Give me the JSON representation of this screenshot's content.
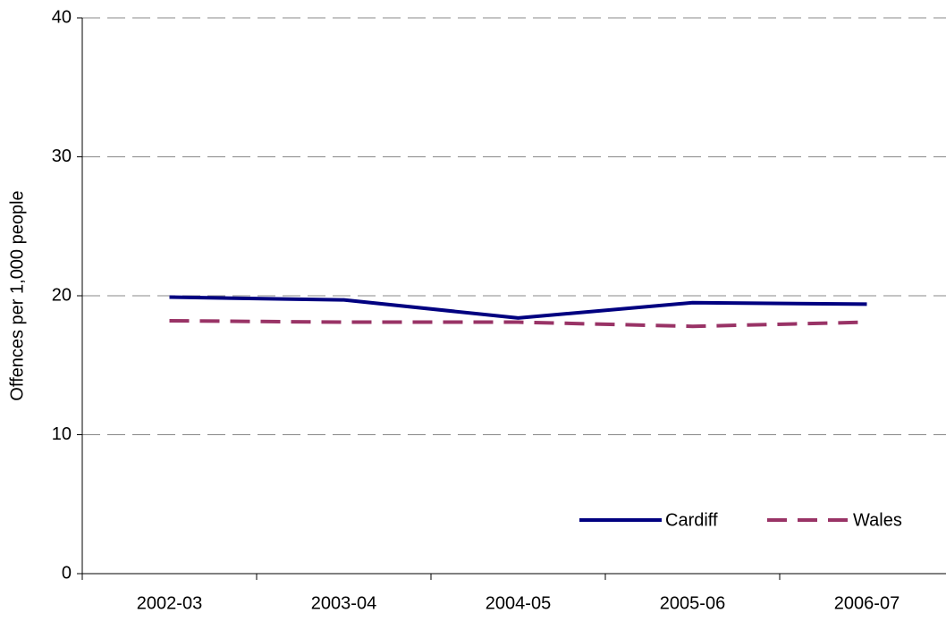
{
  "chart_data": {
    "type": "line",
    "y_label": "Offences per 1,000 people",
    "categories": [
      "2002-03",
      "2003-04",
      "2004-05",
      "2005-06",
      "2006-07"
    ],
    "series": [
      {
        "name": "Cardiff",
        "color": "#000080",
        "linestyle": "solid",
        "values": [
          19.9,
          19.7,
          18.4,
          19.5,
          19.4
        ]
      },
      {
        "name": "Wales",
        "color": "#993366",
        "linestyle": "dashed",
        "values": [
          18.2,
          18.1,
          18.1,
          17.8,
          18.1
        ]
      }
    ],
    "ylim": [
      0,
      40
    ],
    "yticks": [
      0,
      10,
      20,
      30,
      40
    ],
    "grid": true,
    "legend": "lower right"
  }
}
